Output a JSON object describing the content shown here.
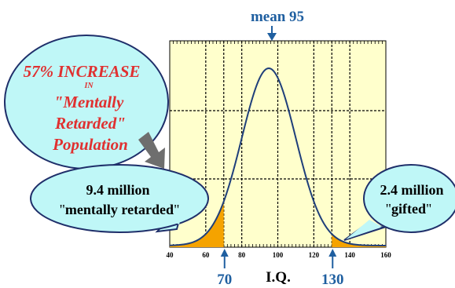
{
  "chart_data": {
    "type": "area",
    "title": "mean 95",
    "xlabel": "I.Q.",
    "ylabel": "",
    "xlim": [
      40,
      160
    ],
    "x_ticks": [
      40,
      60,
      80,
      100,
      120,
      140,
      160
    ],
    "grid": true,
    "distribution": {
      "type": "normal",
      "mean": 95,
      "sd": 15
    },
    "highlight_markers": [
      {
        "value": 70,
        "label": "70"
      },
      {
        "value": 130,
        "label": "130"
      }
    ],
    "shaded_regions": [
      {
        "name": "mentally retarded",
        "from": 40,
        "to": 70,
        "color": "#f5a300"
      },
      {
        "name": "gifted",
        "from": 130,
        "to": 160,
        "color": "#f5a300"
      }
    ],
    "colors": {
      "plot_background": "#ffffcc",
      "curve": "#1f3f7a",
      "accent_text": "#1f5fa0",
      "shade": "#f5a300",
      "callout_fill": "#bff7f7",
      "headline_text": "#e03030"
    },
    "annotations": {
      "headline": {
        "line1": "57% INCREASE",
        "line2": "IN",
        "line3": "\"Mentally",
        "line4": "Retarded\"",
        "line5": "Population"
      },
      "left_callout": {
        "amount": "9.4 million",
        "quote_open": "\"",
        "label": "mentally retarded",
        "quote_close": "\""
      },
      "right_callout": {
        "amount": "2.4 million",
        "quote_open": "\"",
        "label": "gifted",
        "quote_close": "\""
      }
    }
  }
}
